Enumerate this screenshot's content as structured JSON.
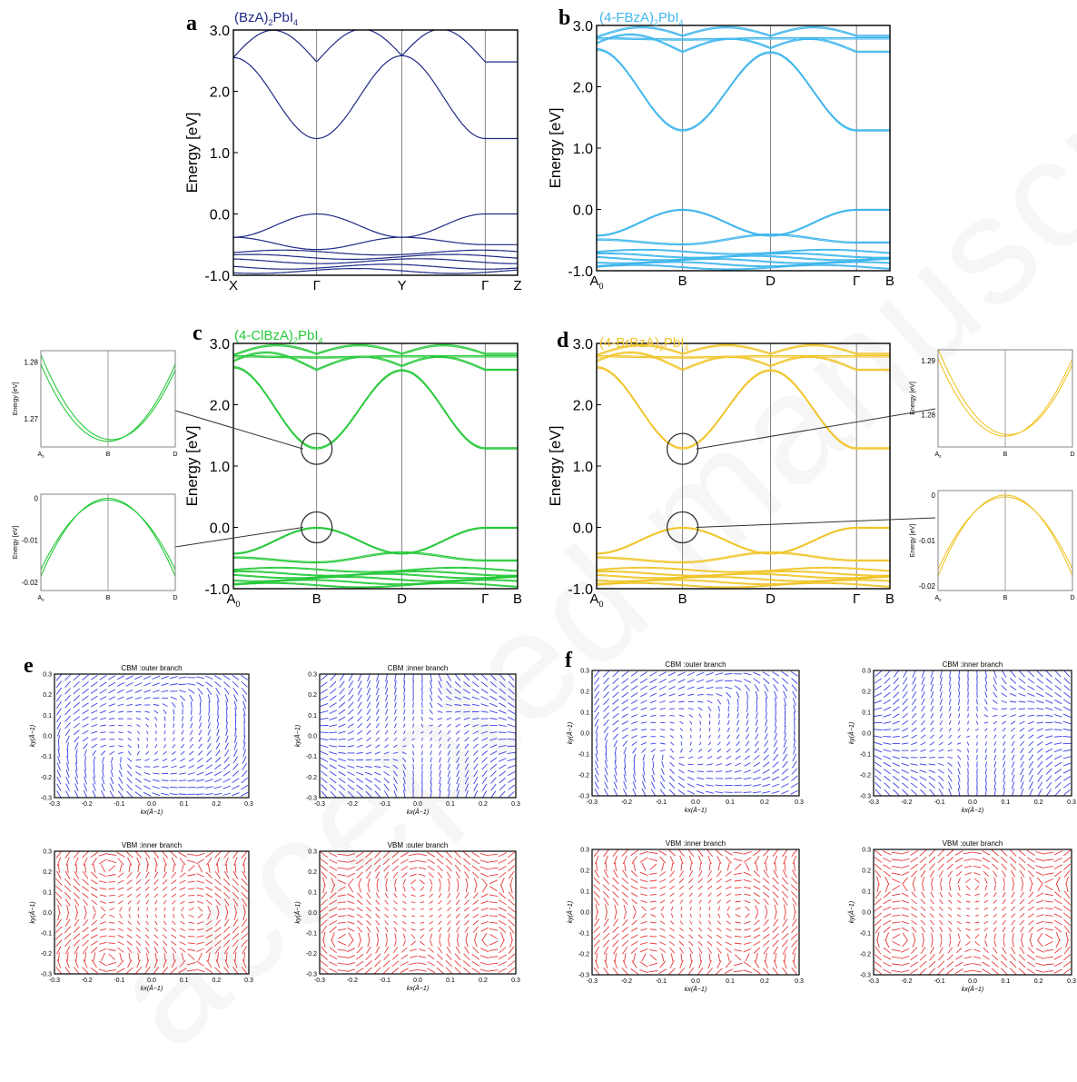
{
  "watermark": "accepted manuscript",
  "colors": {
    "BzA": "#1f2a86",
    "FBzA": "#3fb6ec",
    "ClBzA": "#27c93a",
    "BrBzA": "#f0c52a",
    "cbm_arrow": "#3b40e8",
    "vbm_arrow": "#e83a3a"
  },
  "panels": {
    "a": {
      "letter": "a",
      "title": "(BzA)",
      "sub": "2",
      "title_tail": "PbI",
      "sub2": "4"
    },
    "b": {
      "letter": "b",
      "title": "(4-FBzA)",
      "sub": "2",
      "title_tail": "PbI",
      "sub2": "4"
    },
    "c": {
      "letter": "c",
      "title": "(4-ClBzA)",
      "sub": "2",
      "title_tail": "PbI",
      "sub2": "4"
    },
    "d": {
      "letter": "d",
      "title": "(4-BrBzA)",
      "sub": "2",
      "title_tail": "PbI",
      "sub2": "4"
    },
    "e": {
      "letter": "e"
    },
    "f": {
      "letter": "f"
    }
  },
  "chart_data": [
    {
      "id": "a",
      "type": "line",
      "series_color": "BzA",
      "ylabel": "Energy [eV]",
      "ylim": [
        -1.0,
        3.0
      ],
      "yticks": [
        "3.0",
        "2.0",
        "1.0",
        "0.0",
        "-1.0"
      ],
      "kpoints": [
        "X",
        "Γ",
        "Y",
        "Γ",
        "Z"
      ],
      "kpos": [
        0,
        0.293,
        0.593,
        0.886,
        1
      ],
      "conduction_min_eV": 1.23,
      "valence_max_eV": 0.0
    },
    {
      "id": "b",
      "type": "line",
      "series_color": "FBzA",
      "ylabel": "Energy [eV]",
      "ylim": [
        -1.0,
        3.0
      ],
      "yticks": [
        "3.0",
        "2.0",
        "1.0",
        "0.0",
        "-1.0"
      ],
      "kpoints": [
        "A0",
        "B",
        "D",
        "Γ",
        "B"
      ],
      "kpos": [
        0,
        0.293,
        0.593,
        0.886,
        1
      ],
      "conduction_min_eV": 1.28,
      "valence_max_eV": 0.0
    },
    {
      "id": "c",
      "type": "line",
      "series_color": "ClBzA",
      "ylabel": "Energy [eV]",
      "ylim": [
        -1.0,
        3.0
      ],
      "yticks": [
        "3.0",
        "2.0",
        "1.0",
        "0.0",
        "-1.0"
      ],
      "kpoints": [
        "A0",
        "B",
        "D",
        "Γ",
        "B"
      ],
      "kpos": [
        0,
        0.293,
        0.593,
        0.886,
        1
      ],
      "conduction_min_eV": 1.28,
      "valence_max_eV": 0.0
    },
    {
      "id": "d",
      "type": "line",
      "series_color": "BrBzA",
      "ylabel": "Energy [eV]",
      "ylim": [
        -1.0,
        3.0
      ],
      "yticks": [
        "3.0",
        "2.0",
        "1.0",
        "0.0",
        "-1.0"
      ],
      "kpoints": [
        "A0",
        "B",
        "D",
        "Γ",
        "B"
      ],
      "kpos": [
        0,
        0.293,
        0.593,
        0.886,
        1
      ],
      "conduction_min_eV": 1.28,
      "valence_max_eV": 0.0
    },
    {
      "id": "c_zoom_cbm",
      "type": "line",
      "series_color": "ClBzA",
      "ylabel": "Energy [eV]",
      "ylim": [
        1.265,
        1.282
      ],
      "yticks": [
        "1.28",
        "1.27"
      ],
      "kpoints": [
        "A0",
        "B",
        "D"
      ],
      "minimum": 1.266
    },
    {
      "id": "c_zoom_vbm",
      "type": "line",
      "series_color": "ClBzA",
      "ylabel": "Energy [eV]",
      "ylim": [
        -0.022,
        0.001
      ],
      "yticks": [
        "0",
        "-0.01",
        "-0.02"
      ],
      "kpoints": [
        "A0",
        "B",
        "D"
      ],
      "maximum": 0.0
    },
    {
      "id": "d_zoom_cbm",
      "type": "line",
      "series_color": "BrBzA",
      "ylabel": "Energy [eV]",
      "ylim": [
        1.274,
        1.292
      ],
      "yticks": [
        "1.29",
        "1.28"
      ],
      "kpoints": [
        "A0",
        "B",
        "D"
      ],
      "minimum": 1.276
    },
    {
      "id": "d_zoom_vbm",
      "type": "line",
      "series_color": "BrBzA",
      "ylabel": "Energy [eV]",
      "ylim": [
        -0.021,
        0.001
      ],
      "yticks": [
        "0",
        "-0.01",
        "-0.02"
      ],
      "kpoints": [
        "A0",
        "B",
        "D"
      ],
      "maximum": 0.0
    },
    {
      "id": "spin_textures",
      "type": "scatter",
      "xlabel": "kx(Å−1)",
      "ylabel": "ky(Å−1)",
      "xlim": [
        -0.3,
        0.3
      ],
      "ylim": [
        -0.3,
        0.3
      ],
      "xticks": [
        "-0.3",
        "-0.2",
        "-0.1",
        "0.0",
        "0.1",
        "0.2",
        "0.3"
      ],
      "yticks": [
        "0.3",
        "0.2",
        "0.1",
        "0.0",
        "-0.1",
        "-0.2",
        "-0.3"
      ],
      "titles": [
        "CBM :outer branch",
        "CBM :inner branch",
        "VBM :inner branch",
        "VBM :outer branch"
      ]
    }
  ]
}
